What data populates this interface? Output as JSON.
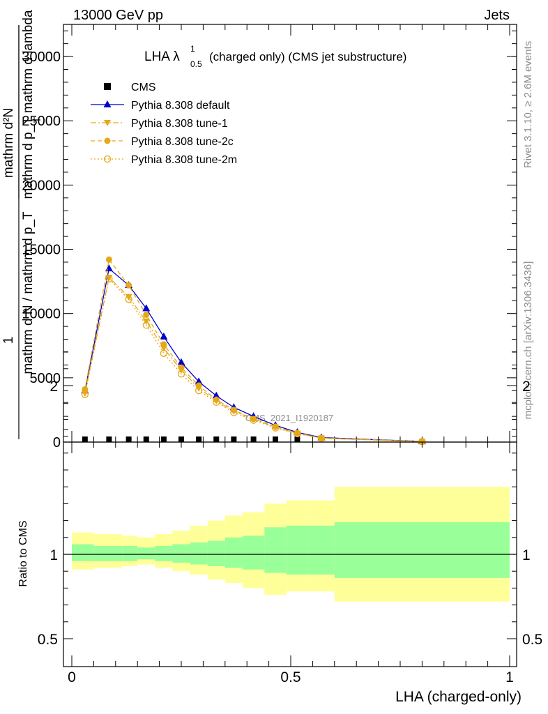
{
  "header": {
    "energy_label": "13000 GeV pp",
    "process_label": "Jets",
    "side_label_top": "Rivet 3.1.10, ≥ 2.6M events",
    "side_label_bottom": "mcplots.cern.ch [arXiv:1306.3436]",
    "watermark": "CMS_2021_I1920187"
  },
  "chart_data": [
    {
      "type": "line",
      "title_main": "LHA λ",
      "title_sup": "1",
      "title_sub": "0.5",
      "title_rest": "(charged only) (CMS jet substructure)",
      "ylabel_numerator": "1",
      "ylabel_denominator": "mathrm d N / mathrm d p_T",
      "ylabel_right_num": "mathrm d²N",
      "ylabel_right_den": "mathrm d p_T mathrm d lambda",
      "ylabel_sub": "T",
      "xlim": [
        0,
        1
      ],
      "ylim": [
        0,
        32500
      ],
      "yticks": [
        0,
        5000,
        10000,
        15000,
        20000,
        25000,
        30000
      ],
      "legend_placement": "top-left",
      "x": [
        0.03,
        0.085,
        0.13,
        0.17,
        0.21,
        0.25,
        0.29,
        0.33,
        0.37,
        0.415,
        0.465,
        0.515,
        0.57,
        0.8
      ],
      "series": [
        {
          "name": "CMS",
          "marker": "square",
          "color": "#000000",
          "values": [
            0,
            0,
            0,
            0,
            0,
            0,
            0,
            0,
            0,
            0,
            0,
            0,
            null,
            null
          ]
        },
        {
          "name": "Pythia 8.308 default",
          "marker": "triangle-up",
          "color": "#0000cc",
          "dash": "solid",
          "values": [
            4000,
            13500,
            12200,
            10400,
            8200,
            6200,
            4700,
            3600,
            2700,
            2000,
            1300,
            750,
            350,
            50
          ]
        },
        {
          "name": "Pythia 8.308 tune-1",
          "marker": "triangle-down",
          "color": "#e6a817",
          "dash": "dashdot",
          "values": [
            3800,
            12800,
            11300,
            9400,
            7300,
            5600,
            4200,
            3200,
            2400,
            1800,
            1150,
            680,
            300,
            40
          ]
        },
        {
          "name": "Pythia 8.308 tune-2c",
          "marker": "circle",
          "color": "#e6a817",
          "dash": "dashed",
          "values": [
            4100,
            14200,
            12200,
            9900,
            7600,
            5800,
            4400,
            3300,
            2500,
            1800,
            1200,
            700,
            320,
            45
          ]
        },
        {
          "name": "Pythia 8.308 tune-2m",
          "marker": "circle-open",
          "color": "#e6a817",
          "dash": "dotted",
          "values": [
            3700,
            12700,
            11100,
            9100,
            6900,
            5300,
            4000,
            3100,
            2300,
            1700,
            1100,
            650,
            290,
            40
          ]
        }
      ]
    },
    {
      "type": "area",
      "ylabel": "Ratio to CMS",
      "xlabel": "LHA (charged-only)",
      "xlim": [
        0,
        1
      ],
      "ylim": [
        0.4,
        2.25
      ],
      "yticks": [
        0.5,
        1,
        2
      ],
      "xticks": [
        0,
        0.5,
        1
      ],
      "xticklabels": [
        "0",
        "0.5",
        "1"
      ],
      "yticklabels": [
        "0.5",
        "1",
        "2"
      ],
      "bin_edges": [
        0,
        0.05,
        0.115,
        0.15,
        0.19,
        0.23,
        0.27,
        0.31,
        0.35,
        0.39,
        0.44,
        0.49,
        0.54,
        0.6,
        1.0
      ],
      "bands": [
        {
          "name": "stat+syst",
          "color": "#ffff99",
          "lo": [
            0.91,
            0.92,
            0.93,
            0.94,
            0.92,
            0.9,
            0.88,
            0.85,
            0.83,
            0.8,
            0.76,
            0.78,
            0.78,
            0.72
          ],
          "hi": [
            1.13,
            1.12,
            1.11,
            1.1,
            1.12,
            1.14,
            1.17,
            1.2,
            1.23,
            1.25,
            1.3,
            1.32,
            1.32,
            1.4
          ]
        },
        {
          "name": "stat",
          "color": "#99ff99",
          "lo": [
            0.96,
            0.96,
            0.96,
            0.97,
            0.96,
            0.95,
            0.94,
            0.93,
            0.92,
            0.91,
            0.89,
            0.88,
            0.88,
            0.86
          ],
          "hi": [
            1.06,
            1.05,
            1.05,
            1.04,
            1.05,
            1.06,
            1.07,
            1.08,
            1.1,
            1.11,
            1.16,
            1.17,
            1.17,
            1.19
          ]
        }
      ]
    }
  ],
  "colors": {
    "frame": "#000000",
    "band_outer": "#ffff99",
    "band_inner": "#99ff99"
  }
}
